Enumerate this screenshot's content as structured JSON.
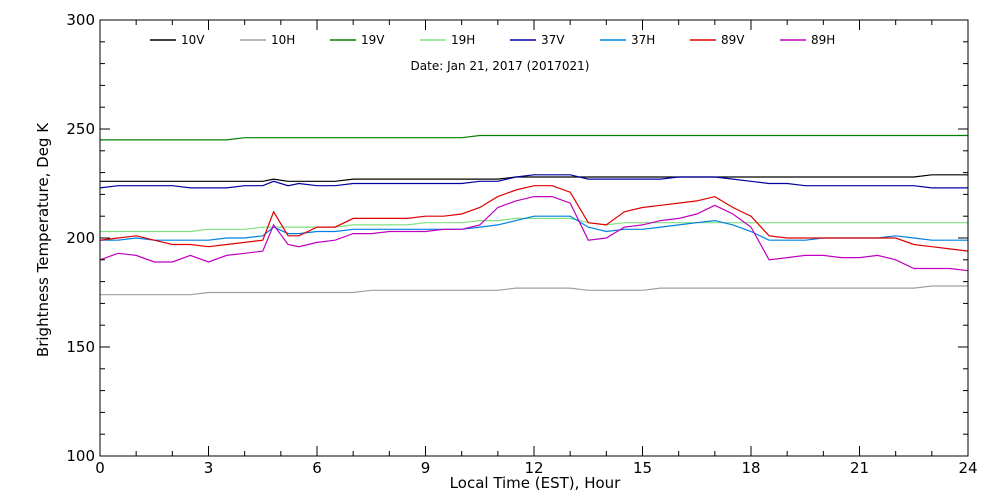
{
  "chart_data": {
    "type": "line",
    "subtitle": "Date: Jan 21, 2017 (2017021)",
    "xlabel": "Local Time (EST), Hour",
    "ylabel": "Brightness Temperature, Deg K",
    "xlim": [
      0,
      24
    ],
    "ylim": [
      100,
      300
    ],
    "xticks": [
      0,
      3,
      6,
      9,
      12,
      15,
      18,
      21,
      24
    ],
    "yticks": [
      100,
      150,
      200,
      250,
      300
    ],
    "grid": false,
    "legend_position": "top",
    "x": [
      0,
      0.5,
      1,
      1.5,
      2,
      2.5,
      3,
      3.5,
      4,
      4.5,
      4.8,
      5.2,
      5.5,
      6,
      6.5,
      7,
      7.5,
      8,
      8.5,
      9,
      9.5,
      10,
      10.5,
      11,
      11.5,
      12,
      12.5,
      13,
      13.5,
      14,
      14.5,
      15,
      15.5,
      16,
      16.5,
      17,
      17.5,
      18,
      18.5,
      19,
      19.5,
      20,
      20.5,
      21,
      21.5,
      22,
      22.5,
      23,
      23.5,
      24
    ],
    "series": [
      {
        "name": "10V",
        "color": "#000000",
        "values": [
          226,
          226,
          226,
          226,
          226,
          226,
          226,
          226,
          226,
          226,
          227,
          226,
          226,
          226,
          226,
          227,
          227,
          227,
          227,
          227,
          227,
          227,
          227,
          227,
          228,
          228,
          228,
          228,
          228,
          228,
          228,
          228,
          228,
          228,
          228,
          228,
          228,
          228,
          228,
          228,
          228,
          228,
          228,
          228,
          228,
          228,
          228,
          229,
          229,
          229
        ]
      },
      {
        "name": "10H",
        "color": "#a0a0a0",
        "values": [
          174,
          174,
          174,
          174,
          174,
          174,
          175,
          175,
          175,
          175,
          175,
          175,
          175,
          175,
          175,
          175,
          176,
          176,
          176,
          176,
          176,
          176,
          176,
          176,
          177,
          177,
          177,
          177,
          176,
          176,
          176,
          176,
          177,
          177,
          177,
          177,
          177,
          177,
          177,
          177,
          177,
          177,
          177,
          177,
          177,
          177,
          177,
          178,
          178,
          178
        ]
      },
      {
        "name": "19V",
        "color": "#008000",
        "values": [
          245,
          245,
          245,
          245,
          245,
          245,
          245,
          245,
          246,
          246,
          246,
          246,
          246,
          246,
          246,
          246,
          246,
          246,
          246,
          246,
          246,
          246,
          247,
          247,
          247,
          247,
          247,
          247,
          247,
          247,
          247,
          247,
          247,
          247,
          247,
          247,
          247,
          247,
          247,
          247,
          247,
          247,
          247,
          247,
          247,
          247,
          247,
          247,
          247,
          247
        ]
      },
      {
        "name": "19H",
        "color": "#80e080",
        "values": [
          203,
          203,
          203,
          203,
          203,
          203,
          204,
          204,
          204,
          205,
          205,
          205,
          205,
          205,
          205,
          206,
          206,
          206,
          206,
          207,
          207,
          207,
          208,
          208,
          209,
          209,
          209,
          209,
          207,
          206,
          207,
          207,
          207,
          207,
          207,
          207,
          207,
          207,
          207,
          207,
          207,
          207,
          207,
          207,
          207,
          207,
          207,
          207,
          207,
          207
        ]
      },
      {
        "name": "37V",
        "color": "#0000a0",
        "values": [
          223,
          224,
          224,
          224,
          224,
          223,
          223,
          223,
          224,
          224,
          226,
          224,
          225,
          224,
          224,
          225,
          225,
          225,
          225,
          225,
          225,
          225,
          226,
          226,
          228,
          229,
          229,
          229,
          227,
          227,
          227,
          227,
          227,
          228,
          228,
          228,
          227,
          226,
          225,
          225,
          224,
          224,
          224,
          224,
          224,
          224,
          224,
          223,
          223,
          223
        ]
      },
      {
        "name": "37H",
        "color": "#0080e0",
        "values": [
          199,
          199,
          200,
          199,
          199,
          199,
          199,
          200,
          200,
          201,
          205,
          202,
          202,
          203,
          203,
          204,
          204,
          204,
          204,
          204,
          204,
          204,
          205,
          206,
          208,
          210,
          210,
          210,
          205,
          203,
          204,
          204,
          205,
          206,
          207,
          208,
          206,
          203,
          199,
          199,
          199,
          200,
          200,
          200,
          200,
          201,
          200,
          199,
          199,
          199
        ]
      },
      {
        "name": "89V",
        "color": "#e00000",
        "values": [
          199,
          200,
          201,
          199,
          197,
          197,
          196,
          197,
          198,
          199,
          212,
          201,
          201,
          205,
          205,
          209,
          209,
          209,
          209,
          210,
          210,
          211,
          214,
          219,
          222,
          224,
          224,
          221,
          207,
          206,
          212,
          214,
          215,
          216,
          217,
          219,
          214,
          210,
          201,
          200,
          200,
          200,
          200,
          200,
          200,
          200,
          197,
          196,
          195,
          194
        ]
      },
      {
        "name": "89H",
        "color": "#c000c0",
        "values": [
          190,
          193,
          192,
          189,
          189,
          192,
          189,
          192,
          193,
          194,
          206,
          197,
          196,
          198,
          199,
          202,
          202,
          203,
          203,
          203,
          204,
          204,
          206,
          214,
          217,
          219,
          219,
          216,
          199,
          200,
          205,
          206,
          208,
          209,
          211,
          215,
          211,
          205,
          190,
          191,
          192,
          192,
          191,
          191,
          192,
          190,
          186,
          186,
          186,
          185
        ]
      }
    ]
  }
}
